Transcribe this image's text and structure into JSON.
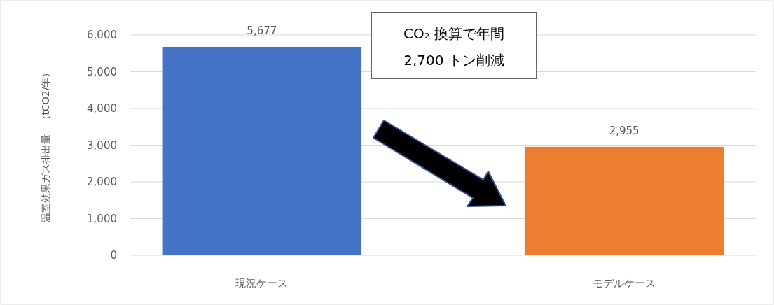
{
  "chart_data": {
    "type": "bar",
    "ylabel": "温室効果ガス排出量　（tCO2/年）",
    "categories": [
      "現況ケース",
      "モデルケース"
    ],
    "values": [
      5677,
      2955
    ],
    "colors": [
      "#4472c4",
      "#ed7d31"
    ],
    "value_labels": [
      "5,677",
      "2,955"
    ],
    "ylim": [
      0,
      6000
    ],
    "yticks": [
      {
        "value": 0,
        "label": "0"
      },
      {
        "value": 1000,
        "label": "1,000"
      },
      {
        "value": 2000,
        "label": "2,000"
      },
      {
        "value": 3000,
        "label": "3,000"
      },
      {
        "value": 4000,
        "label": "4,000"
      },
      {
        "value": 5000,
        "label": "5,000"
      },
      {
        "value": 6000,
        "label": "6,000"
      }
    ],
    "grid": "y",
    "annotations": [
      "CO₂ 換算で年間\n2,700 トン削減"
    ]
  }
}
